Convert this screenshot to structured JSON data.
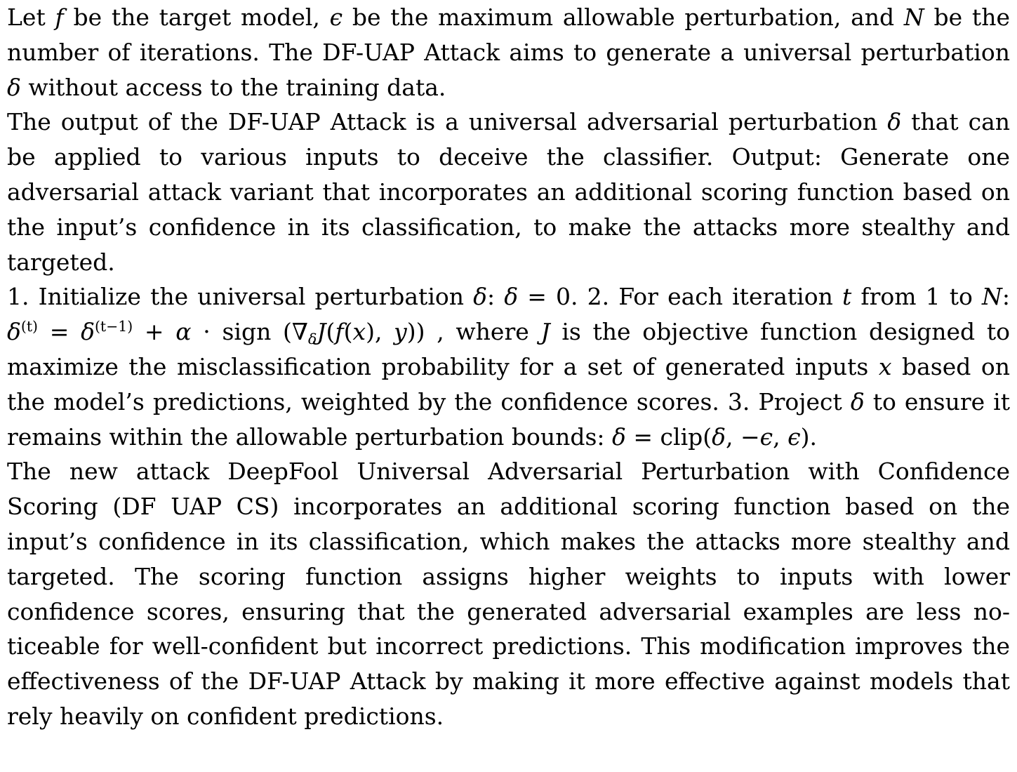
{
  "paragraphs": {
    "p1": {
      "s1": "Let ",
      "f": "f",
      "s2": " be the target model, ",
      "eps": "ϵ",
      "s3": " be the maximum allowable perturbation, and ",
      "N": "N",
      "s4": " be the number of iterations. The DF-UAP Attack aims to generate a universal perturbation ",
      "delta": "δ",
      "s5": " without access to the training data."
    },
    "p2": {
      "s1": "The output of the DF-UAP Attack is a universal adversarial perturbation ",
      "delta": "δ",
      "s2": " that can be applied to various inputs to deceive the classifier. Output: Generate one adversarial attack variant that incorporates an additional scoring function based on the input’s confidence in its classification, to make the attacks more stealthy and targeted."
    },
    "p3": {
      "s1": "1. Initialize the universal perturbation ",
      "d1": "δ",
      "s2": ": ",
      "d2": "δ",
      "eq0": " = 0",
      "s3": ". 2. For each iteration ",
      "t": "t",
      "s4": " from 1 to ",
      "N": "N",
      "s5": ": ",
      "d3": "δ",
      "sup_t": "(t)",
      "eq1": " = ",
      "d4": "δ",
      "sup_t1": "(t−1)",
      "plus": " + ",
      "alpha": "α",
      "dot": " · ",
      "sign": "sign",
      "lp": " (",
      "nabla": "∇",
      "sub_d": "δ",
      "J": "J",
      "open": "(",
      "f": "f",
      "open2": "(",
      "x": "x",
      "comma": "), ",
      "y": "y",
      "close": "))",
      "s6": " , where ",
      "J2": "J",
      "s7": " is the objective function designed to maximize the misclassification probability for a set of generated inputs ",
      "x2": "x",
      "s8": " based on the model’s predictions, weighted by the confidence scores. 3. Project ",
      "d5": "δ",
      "s9": " to ensure it remains within the allowable perturbation bounds: ",
      "d6": "δ",
      "eq2": " = clip(",
      "d7": "δ",
      "c1": ", −",
      "e1": "ϵ",
      "c2": ", ",
      "e2": "ϵ",
      "c3": ")",
      "s10": "."
    },
    "p4": {
      "text": "The new attack DeepFool Universal Adversarial Perturbation with Confidence Scoring (DF UAP CS) incorporates an additional scoring function based on the input’s confidence in its classification, which makes the attacks more stealthy and targeted. The scoring function assigns higher weights to inputs with lower confidence scores, ensuring that the generated adversarial examples are less no­ticeable for well-confident but incorrect predictions. This modification improves the effectiveness of the DF-UAP Attack by making it more effective against models that rely heavily on confident predictions."
    }
  }
}
